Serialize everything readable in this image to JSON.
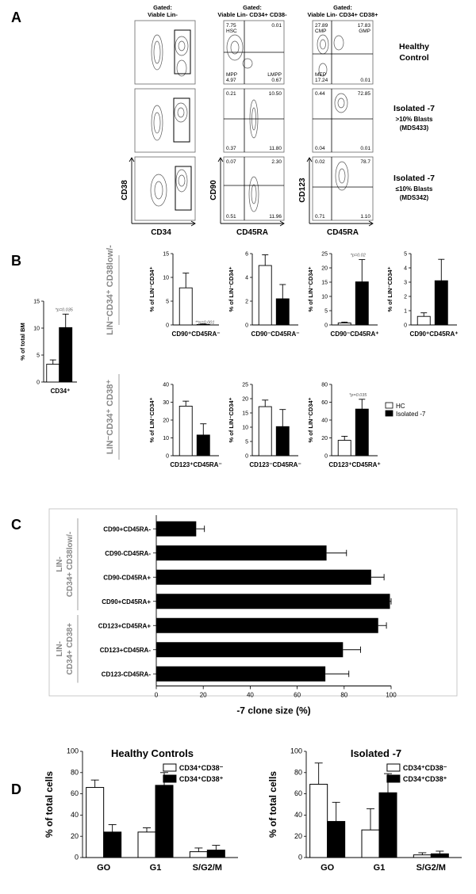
{
  "panels": {
    "A": "A",
    "B": "B",
    "C": "C",
    "D": "D"
  },
  "panelA": {
    "gate_headers": [
      [
        "Gated:",
        "Viable Lin-"
      ],
      [
        "Gated:",
        "Viable Lin- CD34+ CD38-"
      ],
      [
        "Gated:",
        "Viable Lin- CD34+ CD38+"
      ]
    ],
    "row_labels": [
      [
        "Healthy",
        "Control"
      ],
      [
        "Isolated -7",
        ">10% Blasts",
        "(MDS433)"
      ],
      [
        "Isolated -7",
        "≤10% Blasts",
        "(MDS342)"
      ]
    ],
    "axis_labels": {
      "cd38": "CD38",
      "cd34": "CD34",
      "cd90": "CD90",
      "cd45ra_1": "CD45RA",
      "cd123": "CD123",
      "cd45ra_2": "CD45RA"
    },
    "quadrants_cd90": [
      {
        "tl": "7.75",
        "tl_name": "HSC",
        "tr": "0.01",
        "bl": "4.97",
        "bl_name": "MPP",
        "br": "0.67",
        "br_name": "LMPP"
      },
      {
        "tl": "0.21",
        "tr": "10.50",
        "bl": "0.37",
        "br": "11.80"
      },
      {
        "tl": "0.07",
        "tr": "2.30",
        "bl": "0.51",
        "br": "11.96"
      }
    ],
    "quadrants_cd123": [
      {
        "tl": "27.89",
        "tl_name": "CMP",
        "tr": "17.83",
        "tr_name": "GMP",
        "bl": "17.24",
        "bl_name": "MEP",
        "br": "0.01"
      },
      {
        "tl": "0.44",
        "tr": "72.85",
        "bl": "0.04",
        "br": "0.01"
      },
      {
        "tl": "0.02",
        "tr": "78.7",
        "bl": "0.71",
        "br": "1.10"
      }
    ]
  },
  "panelB": {
    "row1_title": "LIN⁻CD34⁺ CD38low/-",
    "row2_title": "LIN⁻CD34⁺ CD38⁺",
    "legend": {
      "hc": "HC",
      "iso": "Isolated -7"
    }
  },
  "panelD": {
    "legend1": "CD34⁺CD38⁻",
    "legend2": "CD34⁺CD38⁺"
  },
  "chart_data": [
    {
      "type": "bar",
      "panel": "B",
      "title": "CD34⁺",
      "ylabel": "% of total BM",
      "ylim": [
        0,
        15
      ],
      "yticks": [
        0,
        5,
        10,
        15
      ],
      "categories": [
        "HC",
        "Isolated -7"
      ],
      "values": [
        3.3,
        10.1
      ],
      "errors": [
        0.8,
        2.5
      ],
      "xlabel": "CD34⁺",
      "annotation": "*p=0.035"
    },
    {
      "type": "bar",
      "panel": "B",
      "ylabel": "% of LIN⁻CD34⁺",
      "ylim": [
        0,
        15
      ],
      "yticks": [
        0,
        5,
        10,
        15
      ],
      "categories": [
        "HC",
        "Isolated -7"
      ],
      "values": [
        7.8,
        0.1
      ],
      "errors": [
        3.1,
        0.1
      ],
      "xlabel": "CD90⁺CD45RA⁻",
      "annotation": "**p=0.001"
    },
    {
      "type": "bar",
      "panel": "B",
      "ylabel": "% of LIN⁻CD34⁺",
      "ylim": [
        0,
        6
      ],
      "yticks": [
        0,
        2,
        4,
        6
      ],
      "categories": [
        "HC",
        "Isolated -7"
      ],
      "values": [
        5.0,
        2.2
      ],
      "errors": [
        0.9,
        1.2
      ],
      "xlabel": "CD90⁻CD45RA⁻",
      "annotation": ""
    },
    {
      "type": "bar",
      "panel": "B",
      "ylabel": "% of LIN⁻CD34⁺",
      "ylim": [
        0,
        25
      ],
      "yticks": [
        0,
        5,
        10,
        15,
        20,
        25
      ],
      "categories": [
        "HC",
        "Isolated -7"
      ],
      "values": [
        0.7,
        15.1
      ],
      "errors": [
        0.3,
        7.8
      ],
      "xlabel": "CD90⁻CD45RA⁺",
      "annotation": "*p=0.02"
    },
    {
      "type": "bar",
      "panel": "B",
      "ylabel": "% of LIN⁻CD34⁺",
      "ylim": [
        0,
        5
      ],
      "yticks": [
        0,
        1,
        2,
        3,
        4,
        5
      ],
      "categories": [
        "HC",
        "Isolated -7"
      ],
      "values": [
        0.6,
        3.1
      ],
      "errors": [
        0.25,
        1.5
      ],
      "xlabel": "CD90⁺CD45RA⁺",
      "annotation": ""
    },
    {
      "type": "bar",
      "panel": "B",
      "ylabel": "% of LIN⁻CD34⁺",
      "ylim": [
        0,
        40
      ],
      "yticks": [
        0,
        10,
        20,
        30,
        40
      ],
      "categories": [
        "HC",
        "Isolated -7"
      ],
      "values": [
        27.8,
        11.6
      ],
      "errors": [
        2.8,
        6.3
      ],
      "xlabel": "CD123⁺CD45RA⁻",
      "annotation": ""
    },
    {
      "type": "bar",
      "panel": "B",
      "ylabel": "% of LIN⁻CD34⁺",
      "ylim": [
        0,
        25
      ],
      "yticks": [
        0,
        5,
        10,
        15,
        20,
        25
      ],
      "categories": [
        "HC",
        "Isolated -7"
      ],
      "values": [
        17.2,
        10.2
      ],
      "errors": [
        2.3,
        6.0
      ],
      "xlabel": "CD123⁻CD45RA⁻",
      "annotation": ""
    },
    {
      "type": "bar",
      "panel": "B",
      "ylabel": "% of LIN⁻CD34⁺",
      "ylim": [
        0,
        80
      ],
      "yticks": [
        0,
        20,
        40,
        60,
        80
      ],
      "categories": [
        "HC",
        "Isolated -7"
      ],
      "values": [
        17.3,
        52.3
      ],
      "errors": [
        4.5,
        11.0
      ],
      "xlabel": "CD123⁺CD45RA⁺",
      "annotation": "*p=0.035"
    },
    {
      "type": "bar",
      "panel": "C",
      "orientation": "horizontal",
      "xlabel": "-7 clone size (%)",
      "xlim": [
        0,
        100
      ],
      "xticks": [
        0,
        20,
        40,
        60,
        80,
        100
      ],
      "groups": [
        {
          "label": "LIN- CD34+ CD38low/-",
          "start": 0,
          "end": 3
        },
        {
          "label": "LIN- CD34+ CD38+",
          "start": 4,
          "end": 6
        }
      ],
      "categories": [
        "CD90+CD45RA-",
        "CD90-CD45RA-",
        "CD90-CD45RA+",
        "CD90+CD45RA+",
        "CD123+CD45RA+",
        "CD123+CD45RA-",
        "CD123-CD45RA-"
      ],
      "values": [
        17,
        72.5,
        91.5,
        99.5,
        94.5,
        79.5,
        72
      ],
      "errors": [
        3.5,
        8.5,
        5.5,
        0.5,
        3.5,
        7.5,
        10
      ]
    },
    {
      "type": "bar",
      "panel": "D",
      "title": "Healthy Controls",
      "ylabel": "% of total cells",
      "ylim": [
        0,
        100
      ],
      "yticks": [
        0,
        20,
        40,
        60,
        80,
        100
      ],
      "categories": [
        "GO",
        "G1",
        "S/G2/M"
      ],
      "series": [
        {
          "name": "CD34⁺CD38⁻",
          "values": [
            66,
            24,
            5.5
          ],
          "errors": [
            7,
            4,
            3.5
          ]
        },
        {
          "name": "CD34⁺CD38⁺",
          "values": [
            24,
            68,
            7
          ],
          "errors": [
            7,
            12,
            4.5
          ]
        }
      ]
    },
    {
      "type": "bar",
      "panel": "D",
      "title": "Isolated -7",
      "ylabel": "% of total cells",
      "ylim": [
        0,
        100
      ],
      "yticks": [
        0,
        20,
        40,
        60,
        80,
        100
      ],
      "categories": [
        "GO",
        "G1",
        "S/G2/M"
      ],
      "series": [
        {
          "name": "CD34⁺CD38⁻",
          "values": [
            69,
            26,
            2.5
          ],
          "errors": [
            20,
            20,
            2
          ]
        },
        {
          "name": "CD34⁺CD38⁺",
          "values": [
            34,
            61,
            3.5
          ],
          "errors": [
            18,
            18,
            2.5
          ]
        }
      ]
    }
  ]
}
